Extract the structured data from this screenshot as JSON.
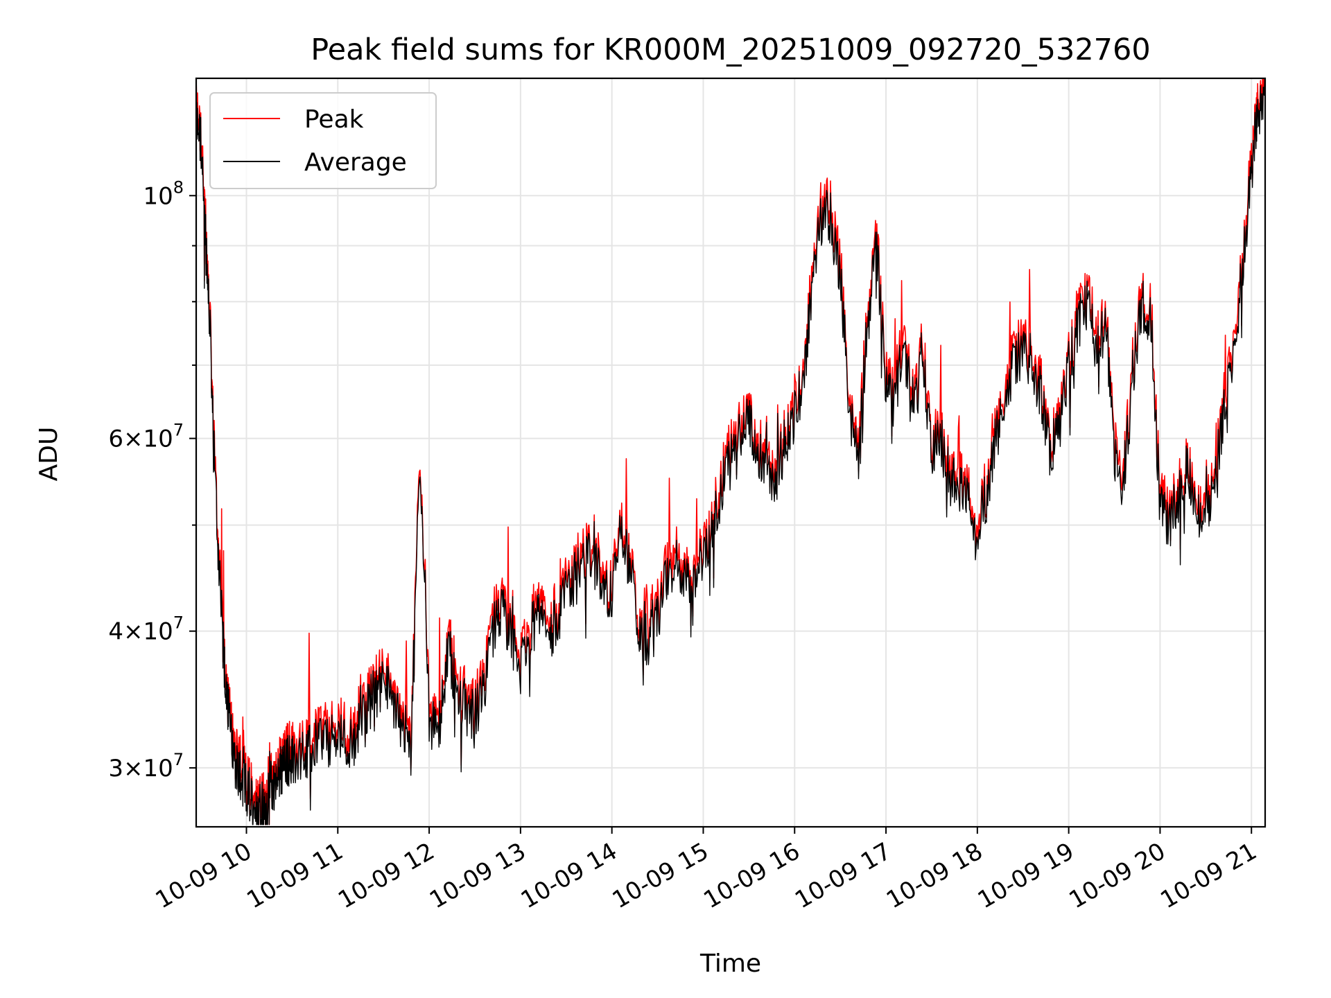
{
  "chart_data": {
    "type": "line",
    "title": "Peak field sums for KR000M_20251009_092720_532760",
    "xlabel": "Time",
    "ylabel": "ADU",
    "yscale": "log",
    "xlim": [
      9.45,
      21.15
    ],
    "ylim": [
      26500000,
      128000000
    ],
    "grid": true,
    "legend_position": "top-left",
    "x_ticks": [
      {
        "value": 10,
        "label": "10-09 10"
      },
      {
        "value": 11,
        "label": "10-09 11"
      },
      {
        "value": 12,
        "label": "10-09 12"
      },
      {
        "value": 13,
        "label": "10-09 13"
      },
      {
        "value": 14,
        "label": "10-09 14"
      },
      {
        "value": 15,
        "label": "10-09 15"
      },
      {
        "value": 16,
        "label": "10-09 16"
      },
      {
        "value": 17,
        "label": "10-09 17"
      },
      {
        "value": 18,
        "label": "10-09 18"
      },
      {
        "value": 19,
        "label": "10-09 19"
      },
      {
        "value": 20,
        "label": "10-09 20"
      },
      {
        "value": 21,
        "label": "10-09 21"
      }
    ],
    "y_ticks": [
      {
        "value": 30000000,
        "base": "3",
        "exp": "7"
      },
      {
        "value": 40000000,
        "base": "4",
        "exp": "7"
      },
      {
        "value": 60000000,
        "base": "6",
        "exp": "7"
      },
      {
        "value": 100000000,
        "base": "",
        "exp": "8"
      }
    ],
    "y_minor_ticks": [
      50000000,
      70000000,
      80000000,
      90000000
    ],
    "series": [
      {
        "name": "Peak",
        "color": "#ff0000"
      },
      {
        "name": "Average",
        "color": "#000000"
      }
    ],
    "x": [
      9.45,
      9.5,
      9.55,
      9.6,
      9.65,
      9.7,
      9.75,
      9.8,
      9.85,
      9.9,
      9.95,
      10.0,
      10.05,
      10.1,
      10.15,
      10.2,
      10.25,
      10.3,
      10.35,
      10.4,
      10.45,
      10.5,
      10.6,
      10.7,
      10.8,
      10.9,
      11.0,
      11.1,
      11.2,
      11.3,
      11.4,
      11.5,
      11.6,
      11.7,
      11.8,
      11.9,
      12.0,
      12.1,
      12.2,
      12.3,
      12.4,
      12.5,
      12.6,
      12.7,
      12.8,
      12.9,
      13.0,
      13.1,
      13.2,
      13.3,
      13.4,
      13.5,
      13.6,
      13.7,
      13.8,
      13.9,
      14.0,
      14.1,
      14.2,
      14.3,
      14.4,
      14.5,
      14.6,
      14.7,
      14.8,
      14.9,
      15.0,
      15.1,
      15.2,
      15.3,
      15.4,
      15.5,
      15.6,
      15.7,
      15.8,
      15.9,
      16.0,
      16.1,
      16.2,
      16.3,
      16.4,
      16.5,
      16.6,
      16.7,
      16.8,
      16.9,
      17.0,
      17.1,
      17.2,
      17.3,
      17.4,
      17.5,
      17.6,
      17.7,
      17.8,
      17.9,
      18.0,
      18.1,
      18.2,
      18.3,
      18.4,
      18.5,
      18.6,
      18.7,
      18.8,
      18.9,
      19.0,
      19.1,
      19.2,
      19.3,
      19.4,
      19.5,
      19.6,
      19.7,
      19.8,
      19.9,
      20.0,
      20.1,
      20.2,
      20.3,
      20.4,
      20.5,
      20.6,
      20.7,
      20.8,
      20.9,
      21.0,
      21.05,
      21.1,
      21.15
    ],
    "average": [
      118000000,
      112000000,
      92000000,
      76000000,
      56000000,
      46000000,
      38000000,
      34000000,
      31000000,
      30000000,
      29500000,
      28500000,
      28000000,
      27500000,
      28000000,
      27000000,
      28500000,
      29000000,
      29500000,
      30000000,
      30500000,
      30500000,
      31000000,
      31000000,
      32000000,
      31500000,
      32000000,
      31500000,
      32000000,
      34000000,
      35000000,
      36000000,
      34000000,
      33000000,
      31500000,
      58000000,
      33000000,
      32000000,
      38000000,
      36000000,
      33500000,
      33500000,
      35000000,
      40000000,
      42000000,
      39000000,
      37000000,
      40000000,
      41000000,
      39500000,
      41000000,
      43000000,
      45000000,
      46000000,
      48000000,
      43000000,
      43500000,
      49000000,
      46000000,
      40000000,
      39000000,
      41000000,
      45000000,
      46000000,
      44000000,
      45000000,
      47000000,
      50000000,
      54000000,
      57000000,
      61000000,
      63000000,
      58000000,
      56000000,
      55000000,
      60000000,
      63000000,
      68000000,
      84000000,
      96000000,
      95000000,
      85000000,
      64000000,
      56000000,
      78000000,
      90000000,
      66000000,
      68000000,
      72000000,
      64000000,
      72000000,
      58000000,
      60000000,
      55000000,
      54000000,
      52000000,
      50000000,
      53000000,
      60000000,
      65000000,
      70000000,
      72000000,
      68000000,
      66000000,
      58000000,
      62000000,
      70000000,
      76000000,
      79000000,
      73000000,
      76000000,
      58000000,
      54000000,
      68000000,
      80000000,
      76000000,
      52000000,
      50000000,
      53000000,
      57000000,
      52000000,
      50000000,
      56000000,
      63000000,
      72000000,
      85000000,
      105000000,
      115000000,
      120000000,
      126000000
    ]
  },
  "legend": {
    "peak_label": "Peak",
    "average_label": "Average"
  }
}
